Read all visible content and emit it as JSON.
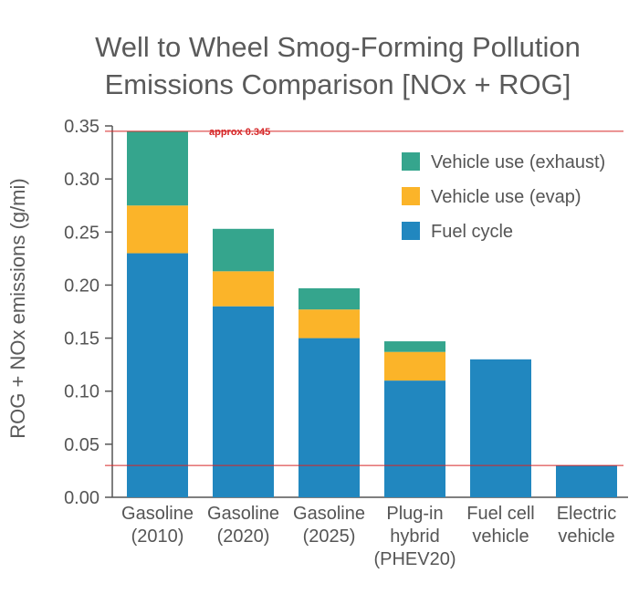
{
  "chart_data": {
    "type": "bar",
    "stacked": true,
    "title_line1": "Well to Wheel Smog-Forming Pollution",
    "title_line2": "Emissions Comparison [NOx + ROG]",
    "ylabel": "ROG + NOx emissions (g/mi)",
    "xlabel": "",
    "ylim": [
      0,
      0.35
    ],
    "yticks": [
      "0.00",
      "0.05",
      "0.10",
      "0.15",
      "0.20",
      "0.25",
      "0.30",
      "0.35"
    ],
    "categories": [
      [
        "Gasoline",
        "(2010)"
      ],
      [
        "Gasoline",
        "(2020)"
      ],
      [
        "Gasoline",
        "(2025)"
      ],
      [
        "Plug-in",
        "hybrid",
        "(PHEV20)"
      ],
      [
        "Fuel cell",
        "vehicle"
      ],
      [
        "Electric",
        "vehicle"
      ]
    ],
    "series": [
      {
        "name": "Fuel cycle",
        "color": "#2187bf",
        "values": [
          0.23,
          0.18,
          0.15,
          0.11,
          0.13,
          0.03
        ]
      },
      {
        "name": "Vehicle use (evap)",
        "color": "#fbb429",
        "values": [
          0.045,
          0.033,
          0.027,
          0.027,
          0,
          0
        ]
      },
      {
        "name": "Vehicle use (exhaust)",
        "color": "#35a58d",
        "values": [
          0.07,
          0.04,
          0.02,
          0.01,
          0,
          0
        ]
      }
    ],
    "legend_order": [
      "Vehicle use (exhaust)",
      "Vehicle use (evap)",
      "Fuel cycle"
    ],
    "legend_position": "top-right",
    "grid": false,
    "reference_lines": [
      {
        "value": 0.345,
        "label": "approx 0.345",
        "color": "#d62728"
      },
      {
        "value": 0.03,
        "label": "",
        "color": "#d62728"
      }
    ]
  }
}
